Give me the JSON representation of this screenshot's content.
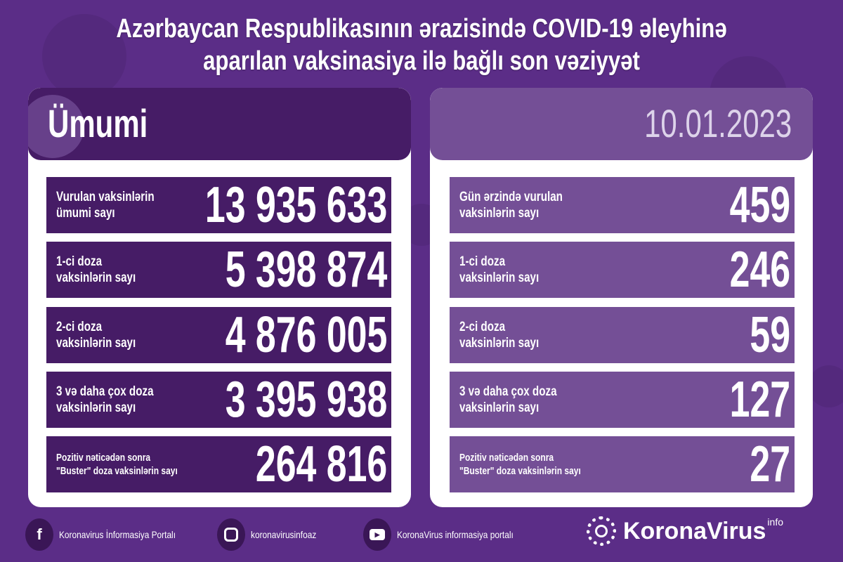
{
  "title": "Azərbaycan Respublikasının ərazisində COVID-19 əleyhinə aparılan vaksinasiya ilə bağlı son vəziyyət",
  "colors": {
    "background": "#5b2d87",
    "left_panel": "#461c66",
    "right_panel": "#744f96",
    "card": "#ffffff"
  },
  "left": {
    "heading": "Ümumi",
    "rows": [
      {
        "label": "Vurulan vaksinlərin\nümumi sayı",
        "value": "13 935 633"
      },
      {
        "label": "1-ci doza\nvaksinlərin sayı",
        "value": "5 398 874"
      },
      {
        "label": "2-ci doza\nvaksinlərin sayı",
        "value": "4 876 005"
      },
      {
        "label": "3 və daha çox doza\nvaksinlərin sayı",
        "value": "3 395 938"
      },
      {
        "label": "Pozitiv nəticədən sonra\n\"Buster\" doza vaksinlərin sayı",
        "value": "264 816"
      }
    ]
  },
  "right": {
    "heading": "10.01.2023",
    "rows": [
      {
        "label": "Gün ərzində vurulan\nvaksinlərin sayı",
        "value": "459"
      },
      {
        "label": "1-ci doza\nvaksinlərin sayı",
        "value": "246"
      },
      {
        "label": "2-ci doza\nvaksinlərin sayı",
        "value": "59"
      },
      {
        "label": "3 və daha çox doza\nvaksinlərin sayı",
        "value": "127"
      },
      {
        "label": "Pozitiv nəticədən sonra\n\"Buster\" doza vaksinlərin sayı",
        "value": "27"
      }
    ]
  },
  "footer": {
    "facebook": "Koronavirus İnformasiya Portalı",
    "instagram": "koronavirusinfoaz",
    "youtube": "KoronaVirus informasiya portalı",
    "logo": "KoronaVirus",
    "logo_sup": "info"
  }
}
